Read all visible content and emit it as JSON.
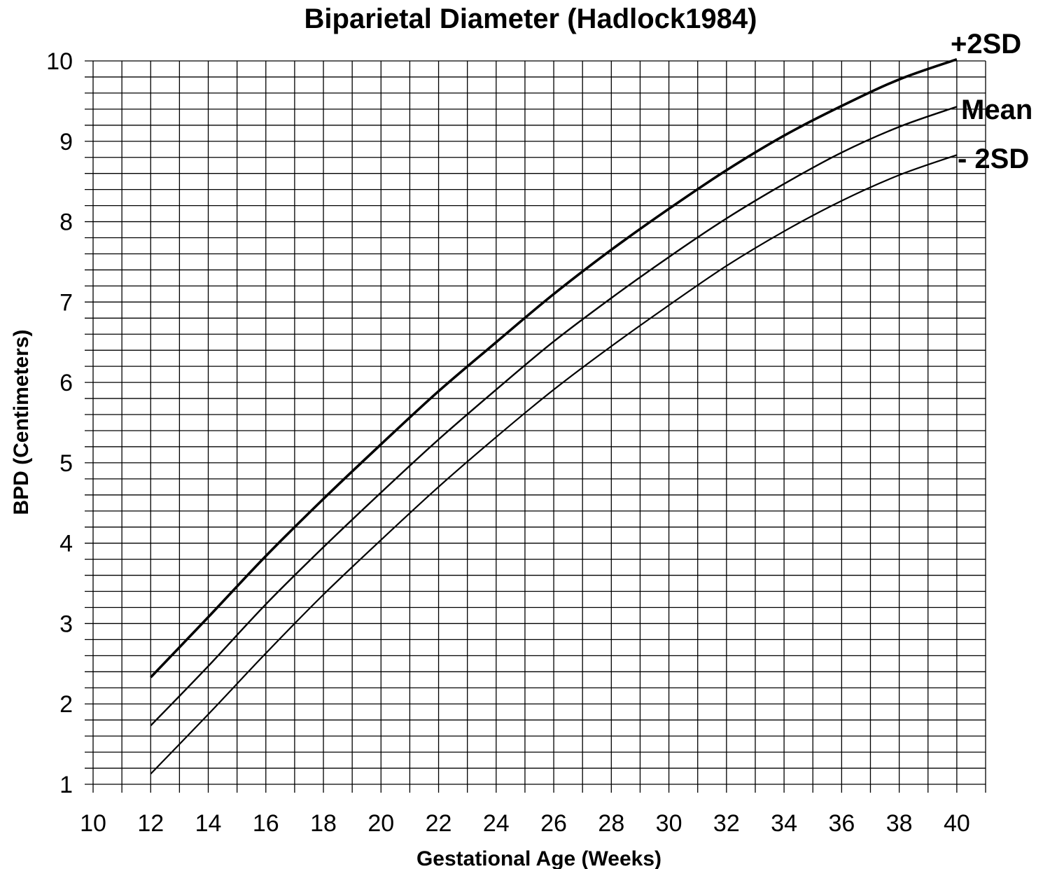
{
  "chart_data": {
    "type": "line",
    "title": "Biparietal Diameter (Hadlock1984)",
    "xlabel": "Gestational Age (Weeks)",
    "ylabel": "BPD (Centimeters)",
    "xlim": [
      10,
      41
    ],
    "ylim": [
      1,
      10
    ],
    "x_ticks": [
      "10",
      "12",
      "14",
      "16",
      "18",
      "20",
      "22",
      "24",
      "26",
      "28",
      "30",
      "32",
      "34",
      "36",
      "38",
      "40"
    ],
    "y_ticks": [
      "1",
      "2",
      "3",
      "4",
      "5",
      "6",
      "7",
      "8",
      "9",
      "10"
    ],
    "grid": true,
    "x": [
      12,
      14,
      16,
      18,
      20,
      22,
      24,
      26,
      28,
      30,
      32,
      34,
      36,
      38,
      40
    ],
    "series": [
      {
        "name": "+2SD",
        "values": [
          2.33,
          3.08,
          3.84,
          4.55,
          5.23,
          5.89,
          6.5,
          7.1,
          7.65,
          8.16,
          8.64,
          9.07,
          9.44,
          9.77,
          10.02
        ]
      },
      {
        "name": "Mean",
        "values": [
          1.73,
          2.47,
          3.24,
          3.95,
          4.63,
          5.29,
          5.91,
          6.51,
          7.05,
          7.56,
          8.04,
          8.47,
          8.86,
          9.18,
          9.43
        ]
      },
      {
        "name": "- 2SD",
        "values": [
          1.13,
          1.87,
          2.63,
          3.36,
          4.04,
          4.7,
          5.32,
          5.91,
          6.45,
          6.96,
          7.45,
          7.88,
          8.26,
          8.58,
          8.83
        ]
      }
    ]
  }
}
